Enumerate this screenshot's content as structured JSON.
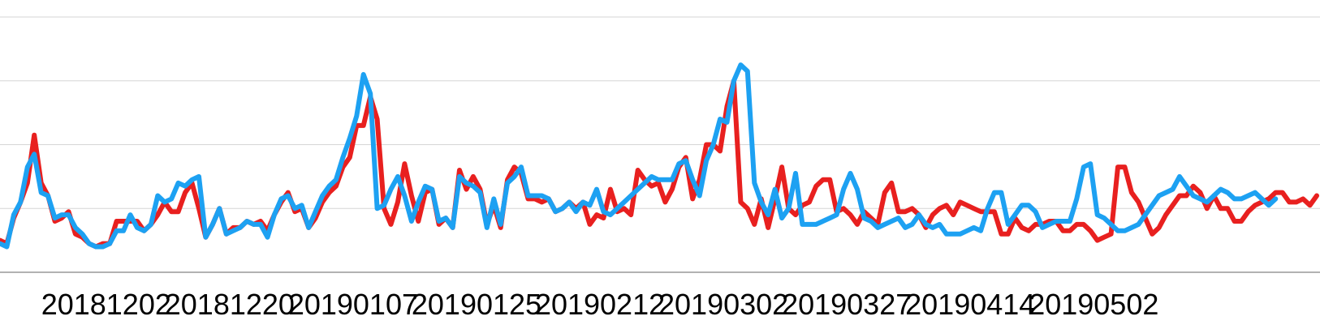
{
  "chart_data": {
    "type": "line",
    "title": "",
    "xlabel": "",
    "ylabel": "",
    "x_tick_labels": [
      "20181202",
      "20181220",
      "20190107",
      "20190125",
      "20190212",
      "20190302",
      "20190327",
      "20190414",
      "20190502"
    ],
    "x_tick_indices": [
      6,
      24,
      42,
      60,
      78,
      96,
      114,
      132,
      150
    ],
    "ylim": [
      0,
      400
    ],
    "y_gridlines": [
      100,
      200,
      300,
      400
    ],
    "grid": true,
    "legend": "none",
    "series": [
      {
        "color": "#e8201f",
        "values": [
          50,
          45,
          85,
          110,
          140,
          215,
          140,
          120,
          80,
          85,
          95,
          60,
          55,
          45,
          40,
          45,
          45,
          80,
          80,
          80,
          80,
          65,
          75,
          90,
          110,
          95,
          95,
          125,
          140,
          100,
          55,
          75,
          100,
          60,
          70,
          70,
          80,
          75,
          80,
          65,
          90,
          110,
          125,
          95,
          100,
          70,
          85,
          110,
          125,
          135,
          165,
          180,
          230,
          230,
          275,
          240,
          100,
          75,
          110,
          170,
          120,
          80,
          125,
          130,
          75,
          85,
          70,
          160,
          130,
          150,
          130,
          75,
          105,
          70,
          145,
          165,
          155,
          115,
          115,
          110,
          115,
          95,
          100,
          110,
          100,
          110,
          75,
          90,
          85,
          130,
          95,
          100,
          90,
          160,
          145,
          135,
          140,
          110,
          130,
          165,
          180,
          115,
          145,
          200,
          200,
          190,
          260,
          300,
          110,
          100,
          75,
          115,
          70,
          115,
          165,
          100,
          90,
          105,
          110,
          135,
          145,
          145,
          95,
          100,
          90,
          75,
          95,
          85,
          75,
          125,
          140,
          95,
          95,
          100,
          90,
          70,
          90,
          100,
          105,
          90,
          110,
          105,
          100,
          95,
          95,
          95,
          60,
          60,
          85,
          70,
          65,
          75,
          75,
          80,
          80,
          65,
          65,
          75,
          75,
          65,
          50,
          55,
          60,
          165,
          165,
          125,
          110,
          85,
          60,
          70,
          90,
          105,
          120,
          120,
          135,
          125,
          100,
          120,
          100,
          100,
          80,
          80,
          95,
          105,
          110,
          115,
          125,
          125,
          110,
          110,
          115,
          105,
          120
        ]
      },
      {
        "color": "#1da1f2",
        "values": [
          45,
          40,
          90,
          110,
          165,
          185,
          125,
          120,
          85,
          90,
          90,
          70,
          60,
          45,
          40,
          40,
          45,
          65,
          65,
          90,
          70,
          65,
          75,
          120,
          110,
          115,
          140,
          135,
          145,
          150,
          55,
          75,
          100,
          60,
          65,
          70,
          80,
          75,
          75,
          55,
          90,
          115,
          120,
          100,
          105,
          70,
          95,
          120,
          135,
          145,
          180,
          210,
          245,
          310,
          280,
          100,
          105,
          130,
          150,
          120,
          80,
          110,
          135,
          130,
          80,
          85,
          70,
          150,
          140,
          135,
          125,
          70,
          115,
          75,
          140,
          150,
          165,
          120,
          120,
          120,
          115,
          95,
          100,
          110,
          95,
          110,
          105,
          130,
          95,
          90,
          100,
          110,
          120,
          130,
          140,
          150,
          145,
          145,
          145,
          170,
          175,
          145,
          120,
          175,
          200,
          240,
          235,
          300,
          325,
          315,
          140,
          110,
          90,
          130,
          85,
          100,
          155,
          75,
          75,
          75,
          80,
          85,
          90,
          130,
          155,
          130,
          85,
          80,
          70,
          75,
          80,
          85,
          70,
          75,
          90,
          75,
          70,
          75,
          60,
          60,
          60,
          65,
          70,
          65,
          100,
          125,
          125,
          75,
          90,
          105,
          105,
          95,
          70,
          75,
          80,
          80,
          80,
          115,
          165,
          170,
          90,
          85,
          75,
          65,
          65,
          70,
          75,
          90,
          105,
          120,
          125,
          130,
          150,
          135,
          120,
          115,
          110,
          120,
          130,
          125,
          115,
          115,
          120,
          125,
          115,
          105,
          115
        ]
      }
    ]
  }
}
